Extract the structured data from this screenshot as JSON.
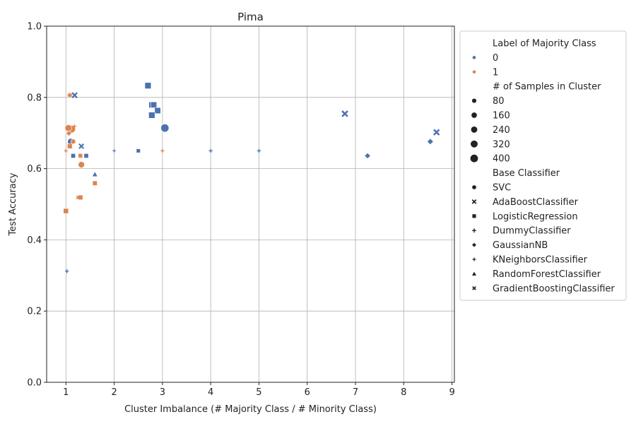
{
  "chart_data": {
    "type": "scatter",
    "title": "Pima",
    "xlabel": "Cluster Imbalance (# Majority Class / # Minority Class)",
    "ylabel": "Test Accuracy",
    "xlim": [
      0.6,
      9.05
    ],
    "ylim": [
      0.0,
      1.0
    ],
    "xticks": [
      1,
      2,
      3,
      4,
      5,
      6,
      7,
      8,
      9
    ],
    "yticks": [
      0.0,
      0.2,
      0.4,
      0.6,
      0.8,
      1.0
    ],
    "grid": true,
    "legend_position": "outside-right",
    "hue": {
      "title": "Label of Majority Class",
      "levels": [
        {
          "label": "0",
          "color": "#4c72b0"
        },
        {
          "label": "1",
          "color": "#dd8452"
        }
      ]
    },
    "size": {
      "title": "# of Samples in Cluster",
      "levels": [
        "80",
        "160",
        "240",
        "320",
        "400"
      ]
    },
    "style": {
      "title": "Base Classifier",
      "levels": [
        {
          "label": "SVC",
          "marker": "circle"
        },
        {
          "label": "AdaBoostClassifier",
          "marker": "x"
        },
        {
          "label": "LogisticRegression",
          "marker": "square"
        },
        {
          "label": "DummyClassifier",
          "marker": "plus"
        },
        {
          "label": "GaussianNB",
          "marker": "diamond"
        },
        {
          "label": "KNeighborsClassifier",
          "marker": "star"
        },
        {
          "label": "RandomForestClassifier",
          "marker": "triangle"
        },
        {
          "label": "GradientBoostingClassifier",
          "marker": "xsmall"
        }
      ]
    },
    "points": [
      {
        "x": 3.05,
        "y": 0.714,
        "cls": 0,
        "n": 400,
        "clf": "SVC"
      },
      {
        "x": 1.1,
        "y": 0.676,
        "cls": 0,
        "n": 200,
        "clf": "SVC"
      },
      {
        "x": 1.12,
        "y": 0.711,
        "cls": 1,
        "n": 330,
        "clf": "SVC"
      },
      {
        "x": 1.05,
        "y": 0.714,
        "cls": 1,
        "n": 240,
        "clf": "SVC"
      },
      {
        "x": 1.32,
        "y": 0.611,
        "cls": 1,
        "n": 200,
        "clf": "SVC"
      },
      {
        "x": 1.15,
        "y": 0.676,
        "cls": 1,
        "n": 90,
        "clf": "SVC"
      },
      {
        "x": 1.08,
        "y": 0.806,
        "cls": 1,
        "n": 130,
        "clf": "SVC"
      },
      {
        "x": 6.78,
        "y": 0.754,
        "cls": 0,
        "n": 220,
        "clf": "AdaBoostClassifier"
      },
      {
        "x": 8.68,
        "y": 0.702,
        "cls": 0,
        "n": 200,
        "clf": "AdaBoostClassifier"
      },
      {
        "x": 1.18,
        "y": 0.806,
        "cls": 0,
        "n": 160,
        "clf": "AdaBoostClassifier"
      },
      {
        "x": 1.32,
        "y": 0.663,
        "cls": 0,
        "n": 120,
        "clf": "AdaBoostClassifier"
      },
      {
        "x": 2.7,
        "y": 0.833,
        "cls": 0,
        "n": 260,
        "clf": "LogisticRegression"
      },
      {
        "x": 2.78,
        "y": 0.779,
        "cls": 0,
        "n": 220,
        "clf": "LogisticRegression"
      },
      {
        "x": 2.82,
        "y": 0.779,
        "cls": 0,
        "n": 220,
        "clf": "LogisticRegression"
      },
      {
        "x": 2.9,
        "y": 0.763,
        "cls": 0,
        "n": 240,
        "clf": "LogisticRegression"
      },
      {
        "x": 2.78,
        "y": 0.75,
        "cls": 0,
        "n": 260,
        "clf": "LogisticRegression"
      },
      {
        "x": 1.15,
        "y": 0.636,
        "cls": 0,
        "n": 90,
        "clf": "LogisticRegression"
      },
      {
        "x": 1.42,
        "y": 0.636,
        "cls": 0,
        "n": 90,
        "clf": "LogisticRegression"
      },
      {
        "x": 2.5,
        "y": 0.65,
        "cls": 0,
        "n": 60,
        "clf": "LogisticRegression"
      },
      {
        "x": 1.08,
        "y": 0.663,
        "cls": 1,
        "n": 120,
        "clf": "LogisticRegression"
      },
      {
        "x": 1.3,
        "y": 0.636,
        "cls": 1,
        "n": 80,
        "clf": "LogisticRegression"
      },
      {
        "x": 1.0,
        "y": 0.481,
        "cls": 1,
        "n": 140,
        "clf": "LogisticRegression"
      },
      {
        "x": 1.3,
        "y": 0.519,
        "cls": 1,
        "n": 110,
        "clf": "LogisticRegression"
      },
      {
        "x": 1.6,
        "y": 0.559,
        "cls": 1,
        "n": 100,
        "clf": "LogisticRegression"
      },
      {
        "x": 1.02,
        "y": 0.312,
        "cls": 0,
        "n": 50,
        "clf": "DummyClassifier"
      },
      {
        "x": 4.0,
        "y": 0.65,
        "cls": 0,
        "n": 50,
        "clf": "DummyClassifier"
      },
      {
        "x": 5.0,
        "y": 0.65,
        "cls": 0,
        "n": 50,
        "clf": "DummyClassifier"
      },
      {
        "x": 1.0,
        "y": 0.65,
        "cls": 1,
        "n": 50,
        "clf": "DummyClassifier"
      },
      {
        "x": 3.0,
        "y": 0.65,
        "cls": 1,
        "n": 50,
        "clf": "DummyClassifier"
      },
      {
        "x": 8.55,
        "y": 0.676,
        "cls": 0,
        "n": 160,
        "clf": "GaussianNB"
      },
      {
        "x": 7.25,
        "y": 0.636,
        "cls": 0,
        "n": 140,
        "clf": "GaussianNB"
      },
      {
        "x": 1.08,
        "y": 0.806,
        "cls": 1,
        "n": 110,
        "clf": "GaussianNB"
      },
      {
        "x": 1.06,
        "y": 0.699,
        "cls": 1,
        "n": 110,
        "clf": "GaussianNB"
      },
      {
        "x": 2.0,
        "y": 0.65,
        "cls": 0,
        "n": 50,
        "clf": "KNeighborsClassifier"
      },
      {
        "x": 1.18,
        "y": 0.719,
        "cls": 1,
        "n": 60,
        "clf": "KNeighborsClassifier"
      },
      {
        "x": 1.6,
        "y": 0.584,
        "cls": 0,
        "n": 100,
        "clf": "RandomForestClassifier"
      },
      {
        "x": 1.25,
        "y": 0.519,
        "cls": 1,
        "n": 60,
        "clf": "GradientBoostingClassifier"
      }
    ]
  }
}
